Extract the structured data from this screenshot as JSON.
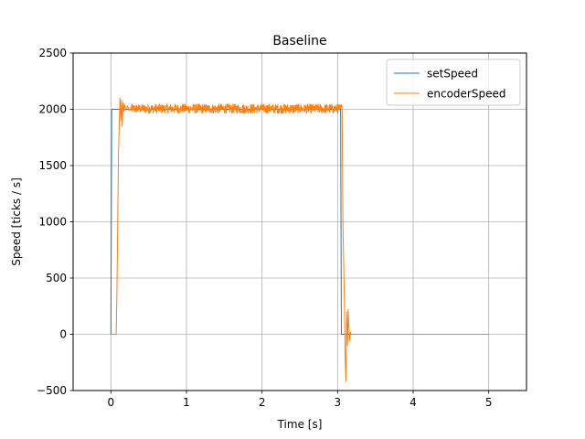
{
  "chart_data": {
    "type": "line",
    "title": "Baseline",
    "xlabel": "Time [s]",
    "ylabel": "Speed [ticks / s]",
    "xlim": [
      -0.5,
      5.5
    ],
    "ylim": [
      -500,
      2500
    ],
    "xticks": [
      0,
      1,
      2,
      3,
      4,
      5
    ],
    "xtick_labels": [
      "0",
      "1",
      "2",
      "3",
      "4",
      "5"
    ],
    "yticks": [
      -500,
      0,
      500,
      1000,
      1500,
      2000,
      2500
    ],
    "ytick_labels": [
      "−500",
      "0",
      "500",
      "1000",
      "1500",
      "2000",
      "2500"
    ],
    "grid": true,
    "legend_position": "top-right",
    "series": [
      {
        "name": "setSpeed",
        "color": "#1f77b4",
        "x": [
          0,
          0,
          0.01,
          3.04,
          3.05,
          5.0
        ],
        "y": [
          0,
          0,
          2000,
          2000,
          0,
          0
        ]
      },
      {
        "name": "encoderSpeed",
        "color": "#ff7f0e",
        "noise_band": {
          "x_from": 0.26,
          "x_to": 3.06,
          "center": 2005,
          "amplitude": 42
        },
        "x": [
          0,
          0.07,
          0.08,
          0.1,
          0.12,
          0.13,
          0.14,
          0.15,
          0.16,
          0.17,
          0.18,
          0.2,
          0.22,
          0.24,
          0.26,
          3.06,
          3.07,
          3.09,
          3.1,
          3.11,
          3.12,
          3.13,
          3.14,
          3.15,
          3.16,
          3.17,
          3.18,
          3.2,
          5.0
        ],
        "y": [
          0,
          0,
          400,
          1600,
          2100,
          1900,
          2080,
          1850,
          2060,
          1980,
          2040,
          1990,
          2030,
          1990,
          2000,
          2000,
          1000,
          300,
          -200,
          -420,
          200,
          -100,
          220,
          50,
          -60,
          20,
          0,
          0,
          0
        ]
      }
    ]
  }
}
